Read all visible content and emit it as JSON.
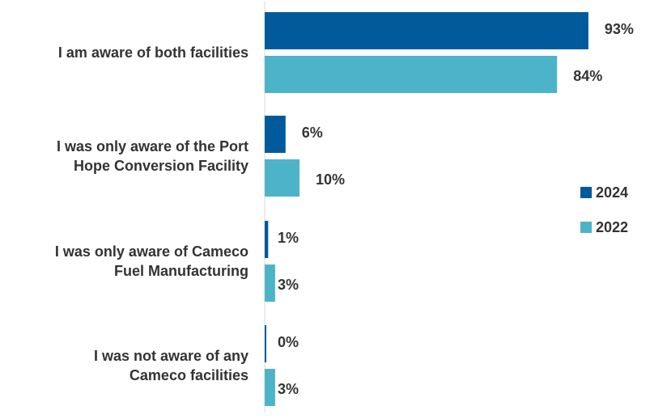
{
  "chart_data": {
    "type": "bar",
    "orientation": "horizontal",
    "categories": [
      [
        "I am aware of both facilities"
      ],
      [
        "I was only aware of the Port",
        "Hope Conversion Facility"
      ],
      [
        "I was only aware of Cameco",
        "Fuel Manufacturing"
      ],
      [
        "I was not aware of any",
        "Cameco facilities"
      ]
    ],
    "series": [
      {
        "name": "2024",
        "color": "#005a9c",
        "values": [
          93,
          6,
          1,
          0
        ],
        "labels": [
          "93%",
          "6%",
          "1%",
          "0%"
        ]
      },
      {
        "name": "2022",
        "color": "#4db3c8",
        "values": [
          84,
          10,
          3,
          3
        ],
        "labels": [
          "84%",
          "10%",
          "3%",
          "3%"
        ]
      }
    ],
    "xlim": [
      0,
      100
    ],
    "value_format": "percent",
    "grid": false,
    "legend_position": "right"
  }
}
